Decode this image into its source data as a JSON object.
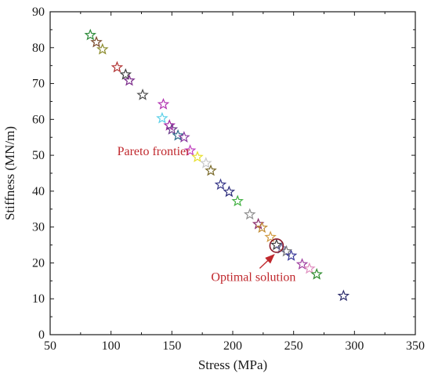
{
  "chart_data": {
    "type": "scatter",
    "title": "",
    "xlabel": "Stress (MPa)",
    "ylabel": "Stiffness (MN/m)",
    "xlim": [
      50,
      350
    ],
    "ylim": [
      0,
      90
    ],
    "xticks": [
      50,
      100,
      150,
      200,
      250,
      300,
      350
    ],
    "yticks": [
      0,
      10,
      20,
      30,
      40,
      50,
      60,
      70,
      80,
      90
    ],
    "grid": false,
    "marker": "star",
    "points": [
      {
        "x": 83,
        "y": 83.5,
        "color": "#2e8b3a"
      },
      {
        "x": 88,
        "y": 81.5,
        "color": "#7a4a2a"
      },
      {
        "x": 93,
        "y": 79.5,
        "color": "#8a8a2a"
      },
      {
        "x": 105,
        "y": 74.5,
        "color": "#b03030"
      },
      {
        "x": 112,
        "y": 72.5,
        "color": "#3a3a3a"
      },
      {
        "x": 115,
        "y": 70.8,
        "color": "#7a2a8a"
      },
      {
        "x": 126,
        "y": 66.8,
        "color": "#4a4a4a"
      },
      {
        "x": 143,
        "y": 64.2,
        "color": "#b030b0"
      },
      {
        "x": 142,
        "y": 60.3,
        "color": "#5ad0e8"
      },
      {
        "x": 148,
        "y": 58.3,
        "color": "#a020a0"
      },
      {
        "x": 150,
        "y": 57.2,
        "color": "#6a3a8a"
      },
      {
        "x": 155,
        "y": 55.5,
        "color": "#2a6a8a"
      },
      {
        "x": 160,
        "y": 55.0,
        "color": "#8a3aa0"
      },
      {
        "x": 165,
        "y": 51.3,
        "color": "#c040c0"
      },
      {
        "x": 171,
        "y": 49.5,
        "color": "#e8e030"
      },
      {
        "x": 178,
        "y": 47.8,
        "color": "#c8c8c8"
      },
      {
        "x": 182,
        "y": 45.7,
        "color": "#7a6a2a"
      },
      {
        "x": 190,
        "y": 41.8,
        "color": "#3a3a8a"
      },
      {
        "x": 197,
        "y": 39.8,
        "color": "#2a2a7a"
      },
      {
        "x": 204,
        "y": 37.2,
        "color": "#40b040"
      },
      {
        "x": 214,
        "y": 33.5,
        "color": "#909090"
      },
      {
        "x": 221,
        "y": 30.8,
        "color": "#8a2a6a"
      },
      {
        "x": 224,
        "y": 29.8,
        "color": "#c08a30"
      },
      {
        "x": 231,
        "y": 27.2,
        "color": "#d09a40"
      },
      {
        "x": 236,
        "y": 25.0,
        "color": "#3a3a3a"
      },
      {
        "x": 240,
        "y": 24.0,
        "color": "#6a6aa0"
      },
      {
        "x": 244,
        "y": 23.2,
        "color": "#7a7a7a"
      },
      {
        "x": 248,
        "y": 22.0,
        "color": "#3a3a9a"
      },
      {
        "x": 257,
        "y": 19.6,
        "color": "#a040a0"
      },
      {
        "x": 263,
        "y": 18.4,
        "color": "#e090c0"
      },
      {
        "x": 269,
        "y": 16.8,
        "color": "#2a8a2a"
      },
      {
        "x": 291,
        "y": 10.8,
        "color": "#2a2a6a"
      }
    ],
    "highlight": {
      "x": 236,
      "y": 24.8,
      "color": "#8b1a2a"
    },
    "annotations": [
      {
        "text": "Pareto frontier",
        "x": 135,
        "y": 50,
        "color": "#c0282d"
      },
      {
        "text": "Optimal solution",
        "x": 217,
        "y": 15,
        "arrow_to": [
          234,
          22.3
        ],
        "color": "#c0282d"
      }
    ]
  }
}
